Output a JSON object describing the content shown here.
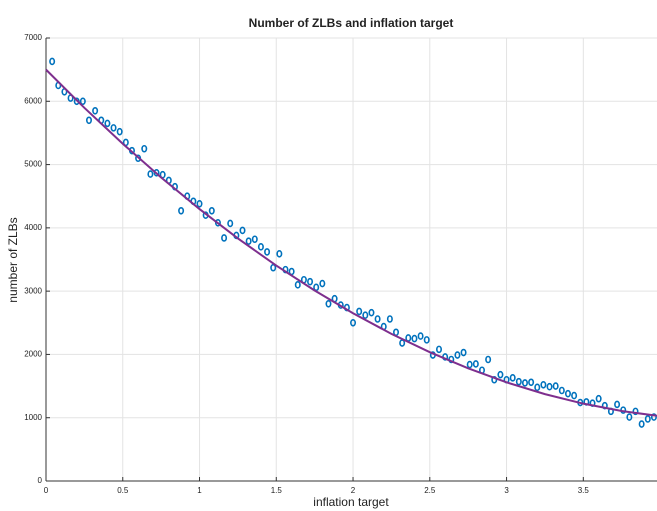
{
  "chart_data": {
    "type": "scatter",
    "title": "Number of ZLBs and inflation target",
    "x_label": "inflation target",
    "y_label": "number of ZLBs",
    "xlim": [
      0,
      3.98
    ],
    "ylim": [
      0,
      7000
    ],
    "xticks": [
      0,
      0.5,
      1,
      1.5,
      2,
      2.5,
      3,
      3.5
    ],
    "yticks": [
      0,
      1000,
      2000,
      3000,
      4000,
      5000,
      6000,
      7000
    ],
    "grid": true,
    "series": [
      {
        "type": "scatter",
        "color": "#0072bd",
        "x": [
          0.04,
          0.08,
          0.12,
          0.16,
          0.2,
          0.24,
          0.28,
          0.32,
          0.36,
          0.4,
          0.44,
          0.48,
          0.52,
          0.56,
          0.6,
          0.64,
          0.68,
          0.72,
          0.76,
          0.8,
          0.84,
          0.88,
          0.92,
          0.96,
          1.0,
          1.04,
          1.08,
          1.12,
          1.16,
          1.2,
          1.24,
          1.28,
          1.32,
          1.36,
          1.4,
          1.44,
          1.48,
          1.52,
          1.56,
          1.6,
          1.64,
          1.68,
          1.72,
          1.76,
          1.8,
          1.84,
          1.88,
          1.92,
          1.96,
          2.0,
          2.04,
          2.08,
          2.12,
          2.16,
          2.2,
          2.24,
          2.28,
          2.32,
          2.36,
          2.4,
          2.44,
          2.48,
          2.52,
          2.56,
          2.6,
          2.64,
          2.68,
          2.72,
          2.76,
          2.8,
          2.84,
          2.88,
          2.92,
          2.96,
          3.0,
          3.04,
          3.08,
          3.12,
          3.16,
          3.2,
          3.24,
          3.28,
          3.32,
          3.36,
          3.4,
          3.44,
          3.48,
          3.52,
          3.56,
          3.6,
          3.64,
          3.68,
          3.72,
          3.76,
          3.8,
          3.84,
          3.88,
          3.92,
          3.96
        ],
        "values": [
          6630,
          6250,
          6150,
          6050,
          6000,
          6000,
          5700,
          5850,
          5700,
          5650,
          5580,
          5520,
          5350,
          5220,
          5100,
          5250,
          4850,
          4870,
          4840,
          4750,
          4650,
          4270,
          4500,
          4420,
          4380,
          4200,
          4270,
          4080,
          3840,
          4070,
          3880,
          3960,
          3790,
          3820,
          3700,
          3620,
          3370,
          3590,
          3340,
          3310,
          3100,
          3180,
          3150,
          3060,
          3120,
          2800,
          2880,
          2780,
          2740,
          2500,
          2680,
          2620,
          2660,
          2560,
          2440,
          2560,
          2350,
          2180,
          2260,
          2250,
          2290,
          2230,
          1990,
          2080,
          1960,
          1920,
          1990,
          2030,
          1840,
          1850,
          1750,
          1920,
          1600,
          1680,
          1600,
          1630,
          1570,
          1550,
          1560,
          1480,
          1520,
          1490,
          1500,
          1430,
          1380,
          1350,
          1240,
          1250,
          1230,
          1300,
          1190,
          1100,
          1210,
          1120,
          1010,
          1100,
          900,
          980,
          1010
        ]
      },
      {
        "type": "line",
        "color": "#7e2f8e",
        "x": [
          0,
          0.25,
          0.5,
          0.75,
          1,
          1.25,
          1.5,
          1.75,
          2,
          2.25,
          2.5,
          2.75,
          3,
          3.25,
          3.5,
          3.75,
          3.98
        ],
        "values": [
          6500,
          5897,
          5329,
          4796,
          4297,
          3833,
          3404,
          3010,
          2650,
          2325,
          2035,
          1780,
          1559,
          1373,
          1222,
          1106,
          1030
        ]
      }
    ]
  }
}
